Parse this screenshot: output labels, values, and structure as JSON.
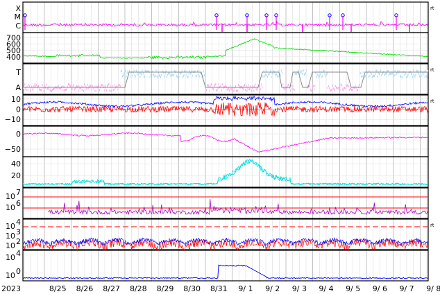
{
  "chart_data": {
    "type": "line",
    "year_label": "2023",
    "x_labels": [
      "8/25",
      "8/26",
      "8/27",
      "8/28",
      "8/29",
      "8/30",
      "8/31",
      "9/ 1",
      "9/ 2",
      "9/ 3",
      "9/ 4",
      "9/ 5",
      "9/ 6",
      "9/ 7",
      "9/ 8"
    ],
    "right_marker": "rt",
    "colors": {
      "magenta": "#ff00ff",
      "green": "#00e000",
      "lightblue": "#aaddff",
      "pink": "#ffaaee",
      "blue": "#0000ff",
      "red": "#ff0000",
      "purple": "#aa00cc",
      "cyan": "#00e0e0",
      "grid": "#bbbbbb",
      "gray": "#888888"
    },
    "panels": [
      {
        "id": "xray-class",
        "y_labels": [
          "X",
          "M",
          "C"
        ],
        "series": [
          "magenta"
        ],
        "events": [
          0.8,
          1.3,
          18.2,
          22.9,
          25.8,
          27.1,
          38.1,
          40.2,
          54.5,
          58.7,
          66.4,
          70.1,
          73.9
        ]
      },
      {
        "id": "solar-wind-speed",
        "y_labels": [
          "700",
          "600",
          "500",
          "400"
        ],
        "ylim": [
          300,
          780
        ],
        "series": [
          "green"
        ]
      },
      {
        "id": "imf-sector",
        "y_labels": [
          "T",
          "A"
        ],
        "series": [
          "lightblue",
          "pink",
          "gray"
        ]
      },
      {
        "id": "imf-components",
        "y_labels": [
          "10",
          "0",
          "−10"
        ],
        "ylim": [
          -16,
          14
        ],
        "series": [
          "blue",
          "red"
        ]
      },
      {
        "id": "dst-index",
        "y_labels": [
          "0",
          "−50"
        ],
        "ylim": [
          -75,
          25
        ],
        "series": [
          "magenta"
        ]
      },
      {
        "id": "kp-ap",
        "y_labels": [
          "40",
          "20"
        ],
        "ylim": [
          0,
          52
        ],
        "series": [
          "cyan"
        ]
      },
      {
        "id": "electron-flux",
        "y_labels": [
          "10",
          "7",
          "10",
          "6"
        ],
        "threshold_lines": [
          7,
          6.3
        ],
        "series": [
          "purple"
        ]
      },
      {
        "id": "proton-flux",
        "y_labels": [
          "10",
          "4",
          "10",
          "3",
          "10",
          "2"
        ],
        "threshold": 4,
        "series": [
          "blue",
          "red"
        ]
      },
      {
        "id": "high-energy-proton",
        "y_labels": [
          "10",
          "4",
          "10",
          "0"
        ],
        "series": [
          "blue"
        ]
      }
    ]
  }
}
